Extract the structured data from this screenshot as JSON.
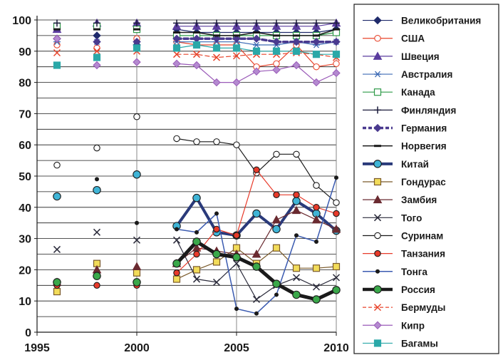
{
  "chart_data": {
    "type": "line",
    "title": "",
    "xlabel": "",
    "ylabel": "",
    "xlim": [
      1995,
      2010
    ],
    "ylim": [
      0,
      100
    ],
    "x_ticks": [
      1995,
      2000,
      2005,
      2010
    ],
    "y_ticks": [
      0,
      10,
      20,
      30,
      40,
      50,
      60,
      70,
      80,
      90,
      100
    ],
    "grid": true,
    "legend_position": "right",
    "series": [
      {
        "name": "Великобритания",
        "color": "#1f2a6b",
        "marker": "diamond",
        "filled": true,
        "width": 1.2,
        "points": [
          [
            1996,
            94
          ],
          [
            1998,
            95
          ],
          [
            2000,
            92
          ],
          [
            2002,
            97
          ],
          [
            2003,
            96
          ],
          [
            2004,
            96
          ],
          [
            2005,
            96
          ],
          [
            2006,
            96
          ],
          [
            2007,
            96
          ],
          [
            2008,
            96
          ],
          [
            2009,
            96
          ],
          [
            2010,
            97
          ]
        ]
      },
      {
        "name": "США",
        "color": "#e8452c",
        "marker": "circle",
        "filled": false,
        "width": 1.2,
        "points": [
          [
            1996,
            92
          ],
          [
            1998,
            91
          ],
          [
            2000,
            94
          ],
          [
            2002,
            93
          ],
          [
            2003,
            92
          ],
          [
            2004,
            92
          ],
          [
            2005,
            92
          ],
          [
            2006,
            85
          ],
          [
            2007,
            86
          ],
          [
            2008,
            92
          ],
          [
            2009,
            85
          ],
          [
            2010,
            86
          ]
        ]
      },
      {
        "name": "Швеция",
        "color": "#5a3c9e",
        "marker": "triangle",
        "filled": true,
        "width": 1.2,
        "points": [
          [
            1996,
            97
          ],
          [
            1998,
            99
          ],
          [
            2000,
            99
          ],
          [
            2002,
            98
          ],
          [
            2003,
            98
          ],
          [
            2004,
            98
          ],
          [
            2005,
            98
          ],
          [
            2006,
            98
          ],
          [
            2007,
            98
          ],
          [
            2008,
            98
          ],
          [
            2009,
            98
          ],
          [
            2010,
            99
          ]
        ]
      },
      {
        "name": "Австралия",
        "color": "#3d6bb5",
        "marker": "asterisk",
        "filled": false,
        "width": 1.2,
        "points": [
          [
            1996,
            93
          ],
          [
            1998,
            93
          ],
          [
            2000,
            91
          ],
          [
            2002,
            93
          ],
          [
            2003,
            93
          ],
          [
            2004,
            93
          ],
          [
            2005,
            93
          ],
          [
            2006,
            92
          ],
          [
            2007,
            92
          ],
          [
            2008,
            93
          ],
          [
            2009,
            92
          ],
          [
            2010,
            93
          ]
        ]
      },
      {
        "name": "Канада",
        "color": "#2e9a48",
        "marker": "square",
        "filled": false,
        "width": 1.2,
        "points": [
          [
            1996,
            98
          ],
          [
            1998,
            98
          ],
          [
            2000,
            97
          ],
          [
            2002,
            95
          ],
          [
            2003,
            95
          ],
          [
            2004,
            95
          ],
          [
            2005,
            95
          ],
          [
            2006,
            95
          ],
          [
            2007,
            95
          ],
          [
            2008,
            95
          ],
          [
            2009,
            95
          ],
          [
            2010,
            96
          ]
        ]
      },
      {
        "name": "Финляндия",
        "color": "#1a1a3a",
        "marker": "plus",
        "filled": false,
        "width": 1.2,
        "points": [
          [
            1996,
            99
          ],
          [
            1998,
            99
          ],
          [
            2000,
            99
          ],
          [
            2002,
            99
          ],
          [
            2003,
            99
          ],
          [
            2004,
            99
          ],
          [
            2005,
            99
          ],
          [
            2006,
            99
          ],
          [
            2007,
            99
          ],
          [
            2008,
            99
          ],
          [
            2009,
            99
          ],
          [
            2010,
            99
          ]
        ]
      },
      {
        "name": "Германия",
        "color": "#4a3a8f",
        "marker": "diamond",
        "filled": true,
        "width": 3.5,
        "dashed": true,
        "points": [
          [
            1996,
            94
          ],
          [
            1998,
            93
          ],
          [
            2000,
            93
          ],
          [
            2002,
            94
          ],
          [
            2003,
            94
          ],
          [
            2004,
            94
          ],
          [
            2005,
            94
          ],
          [
            2006,
            94
          ],
          [
            2007,
            93
          ],
          [
            2008,
            93
          ],
          [
            2009,
            93
          ],
          [
            2010,
            93
          ]
        ]
      },
      {
        "name": "Норвегия",
        "color": "#1a1a1a",
        "marker": "dash",
        "filled": true,
        "width": 1.5,
        "points": [
          [
            1996,
            97
          ],
          [
            1998,
            97
          ],
          [
            2000,
            97
          ],
          [
            2002,
            96
          ],
          [
            2003,
            96
          ],
          [
            2004,
            95
          ],
          [
            2005,
            95
          ],
          [
            2006,
            96
          ],
          [
            2007,
            95
          ],
          [
            2008,
            95
          ],
          [
            2009,
            95
          ],
          [
            2010,
            97
          ]
        ]
      },
      {
        "name": "Китай",
        "color": "#2a3a7a",
        "marker": "circle",
        "filled": true,
        "marker_color": "#3fb4d6",
        "width": 4,
        "points": [
          [
            1996,
            43.5
          ],
          [
            1998,
            45.5
          ],
          [
            2000,
            50.5
          ],
          [
            2002,
            34
          ],
          [
            2003,
            43
          ],
          [
            2004,
            32
          ],
          [
            2005,
            31
          ],
          [
            2006,
            38
          ],
          [
            2007,
            33
          ],
          [
            2008,
            42
          ],
          [
            2009,
            38
          ],
          [
            2010,
            32.5
          ]
        ]
      },
      {
        "name": "Гондурас",
        "color": "#7a5a2a",
        "marker": "square",
        "filled": true,
        "marker_color": "#f2dc5a",
        "width": 1.2,
        "points": [
          [
            1996,
            13
          ],
          [
            1998,
            22
          ],
          [
            2000,
            19
          ],
          [
            2002,
            17
          ],
          [
            2003,
            20
          ],
          [
            2004,
            22.5
          ],
          [
            2005,
            27
          ],
          [
            2006,
            22
          ],
          [
            2007,
            27
          ],
          [
            2008,
            20.5
          ],
          [
            2009,
            20.5
          ],
          [
            2010,
            21
          ]
        ]
      },
      {
        "name": "Замбия",
        "color": "#6a2a30",
        "marker": "triangle",
        "filled": true,
        "width": 1.2,
        "points": [
          [
            1996,
            16
          ],
          [
            1998,
            20
          ],
          [
            2000,
            21
          ],
          [
            2002,
            22
          ],
          [
            2003,
            27
          ],
          [
            2004,
            26
          ],
          [
            2005,
            25
          ],
          [
            2006,
            25
          ],
          [
            2007,
            36
          ],
          [
            2008,
            39
          ],
          [
            2009,
            36
          ],
          [
            2010,
            33
          ]
        ]
      },
      {
        "name": "Того",
        "color": "#2a2a3a",
        "marker": "cross",
        "filled": false,
        "width": 1.2,
        "points": [
          [
            1996,
            26.5
          ],
          [
            1998,
            32
          ],
          [
            2000,
            29.5
          ],
          [
            2002,
            29.5
          ],
          [
            2003,
            17
          ],
          [
            2004,
            16
          ],
          [
            2005,
            22
          ],
          [
            2006,
            10.5
          ],
          [
            2007,
            15
          ],
          [
            2008,
            17.5
          ],
          [
            2009,
            14.5
          ],
          [
            2010,
            17.5
          ]
        ]
      },
      {
        "name": "Суринам",
        "color": "#1a1a1a",
        "marker": "circle",
        "filled": false,
        "width": 1.2,
        "points": [
          [
            1996,
            53.5
          ],
          [
            1998,
            59
          ],
          [
            2000,
            69
          ],
          [
            2002,
            62
          ],
          [
            2003,
            61
          ],
          [
            2004,
            61
          ],
          [
            2005,
            60
          ],
          [
            2006,
            51
          ],
          [
            2007,
            57
          ],
          [
            2008,
            57
          ],
          [
            2009,
            47
          ],
          [
            2010,
            41.5
          ]
        ]
      },
      {
        "name": "Танзания",
        "color": "#e83a2a",
        "marker": "circle",
        "filled": true,
        "width": 1.2,
        "points": [
          [
            1996,
            15
          ],
          [
            1998,
            15
          ],
          [
            2000,
            15
          ],
          [
            2002,
            19
          ],
          [
            2003,
            25
          ],
          [
            2004,
            33
          ],
          [
            2005,
            31
          ],
          [
            2006,
            52
          ],
          [
            2007,
            44
          ],
          [
            2008,
            44
          ],
          [
            2009,
            40
          ],
          [
            2010,
            38
          ]
        ]
      },
      {
        "name": "Тонга",
        "color": "#3a5ab0",
        "marker": "dot",
        "filled": true,
        "marker_color": "#1a1a1a",
        "width": 1.5,
        "points": [
          [
            1996,
            16
          ],
          [
            1998,
            49
          ],
          [
            2000,
            35
          ],
          [
            2002,
            33
          ],
          [
            2003,
            32
          ],
          [
            2004,
            38
          ],
          [
            2005,
            7.5
          ],
          [
            2006,
            6
          ],
          [
            2007,
            12
          ],
          [
            2008,
            31
          ],
          [
            2009,
            29
          ],
          [
            2010,
            49.5
          ]
        ]
      },
      {
        "name": "Россия",
        "color": "#1a1a1a",
        "marker": "circle",
        "filled": true,
        "marker_color": "#3aa84a",
        "width": 5,
        "points": [
          [
            1996,
            16
          ],
          [
            1998,
            18
          ],
          [
            2000,
            16
          ],
          [
            2002,
            22
          ],
          [
            2003,
            29
          ],
          [
            2004,
            25
          ],
          [
            2005,
            24
          ],
          [
            2006,
            21
          ],
          [
            2007,
            15.5
          ],
          [
            2008,
            12
          ],
          [
            2009,
            10.5
          ],
          [
            2010,
            13.5
          ]
        ]
      },
      {
        "name": "Бермуды",
        "color": "#e8452c",
        "marker": "cross",
        "filled": false,
        "width": 1.2,
        "dashed": true,
        "points": [
          [
            1996,
            89.5
          ],
          [
            1998,
            90
          ],
          [
            2000,
            90
          ],
          [
            2002,
            89
          ],
          [
            2003,
            89
          ],
          [
            2004,
            88
          ],
          [
            2005,
            88.5
          ],
          [
            2006,
            89
          ],
          [
            2007,
            89
          ],
          [
            2008,
            89.5
          ],
          [
            2009,
            89
          ],
          [
            2010,
            88
          ]
        ]
      },
      {
        "name": "Кипр",
        "color": "#9a5ab8",
        "marker": "diamond",
        "filled": true,
        "marker_color": "#b48ad0",
        "width": 1.2,
        "points": [
          [
            1996,
            94
          ],
          [
            1998,
            85.5
          ],
          [
            2000,
            86.5
          ],
          [
            2002,
            86
          ],
          [
            2003,
            85.5
          ],
          [
            2004,
            80
          ],
          [
            2005,
            80
          ],
          [
            2006,
            83.5
          ],
          [
            2007,
            84
          ],
          [
            2008,
            85.5
          ],
          [
            2009,
            80
          ],
          [
            2010,
            83
          ]
        ]
      },
      {
        "name": "Багамы",
        "color": "#2aa8a8",
        "marker": "square",
        "filled": true,
        "width": 1.2,
        "points": [
          [
            1996,
            85.5
          ],
          [
            1998,
            88
          ],
          [
            2000,
            91
          ],
          [
            2002,
            91
          ],
          [
            2003,
            92
          ],
          [
            2004,
            91
          ],
          [
            2005,
            91
          ],
          [
            2006,
            90
          ],
          [
            2007,
            90
          ],
          [
            2008,
            90
          ],
          [
            2009,
            89
          ],
          [
            2010,
            89
          ]
        ]
      }
    ]
  }
}
